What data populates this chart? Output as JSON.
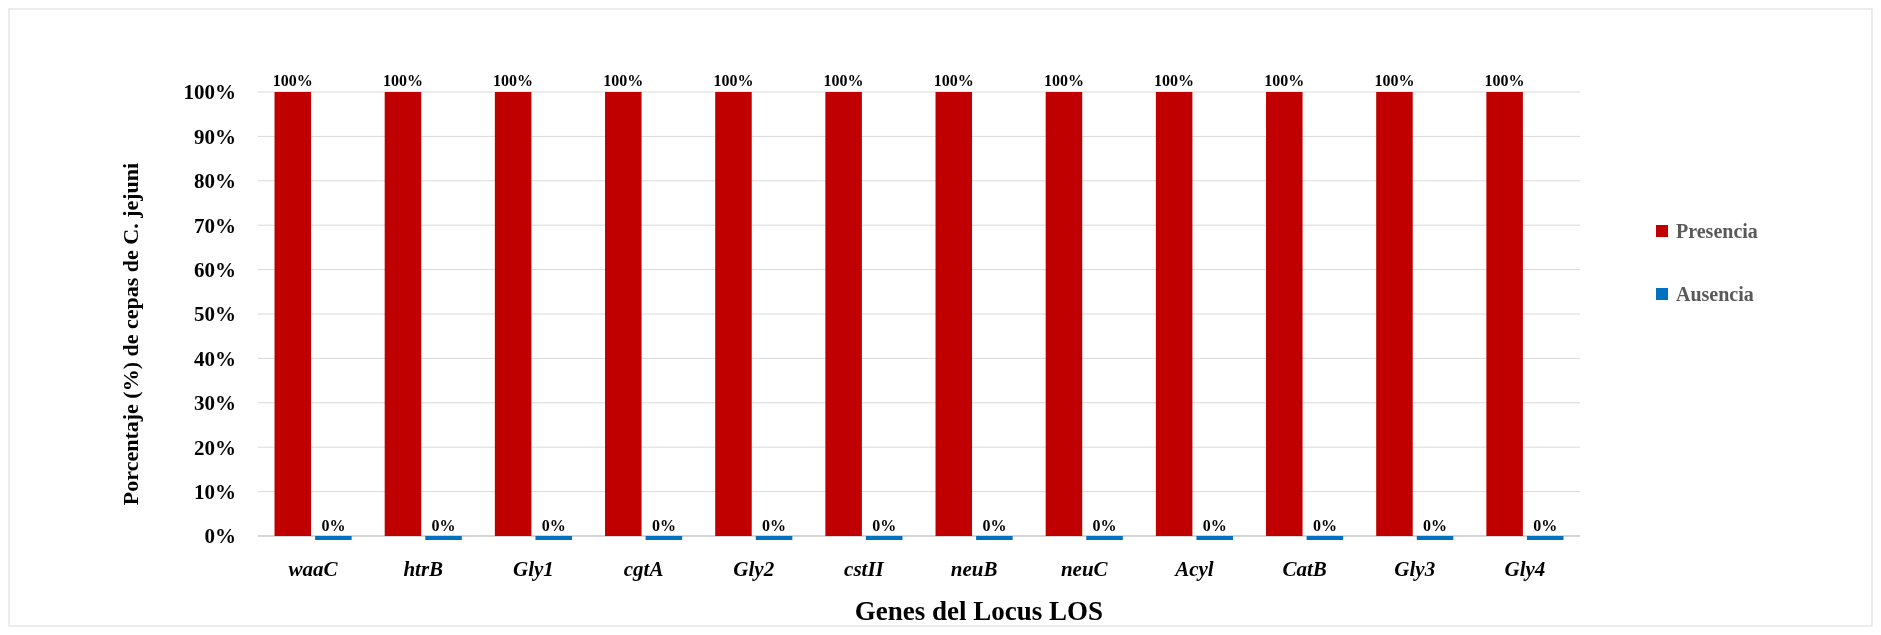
{
  "chart_data": {
    "type": "bar",
    "xlabel": "Genes del Locus  LOS",
    "ylabel": "Porcentaje (%) de cepas de C. jejuni",
    "categories": [
      "waaC",
      "htrB",
      "Gly1",
      "cgtA",
      "Gly2",
      "cstII",
      "neuB",
      "neuC",
      "Acyl",
      "CatB",
      "Gly3",
      "Gly4"
    ],
    "series": [
      {
        "name": "Presencia",
        "color": "#c00000",
        "values": [
          100,
          100,
          100,
          100,
          100,
          100,
          100,
          100,
          100,
          100,
          100,
          100
        ],
        "value_labels": [
          "100%",
          "100%",
          "100%",
          "100%",
          "100%",
          "100%",
          "100%",
          "100%",
          "100%",
          "100%",
          "100%",
          "100%"
        ]
      },
      {
        "name": "Ausencia",
        "color": "#0070c0",
        "values": [
          0,
          0,
          0,
          0,
          0,
          0,
          0,
          0,
          0,
          0,
          0,
          0
        ],
        "value_labels": [
          "0%",
          "0%",
          "0%",
          "0%",
          "0%",
          "0%",
          "0%",
          "0%",
          "0%",
          "0%",
          "0%",
          "0%"
        ]
      }
    ],
    "ylim": [
      0,
      100
    ],
    "yticks": [
      {
        "value": 0,
        "label": "0%"
      },
      {
        "value": 10,
        "label": "10%"
      },
      {
        "value": 20,
        "label": "20%"
      },
      {
        "value": 30,
        "label": "30%"
      },
      {
        "value": 40,
        "label": "40%"
      },
      {
        "value": 50,
        "label": "50%"
      },
      {
        "value": 60,
        "label": "60%"
      },
      {
        "value": 70,
        "label": "70%"
      },
      {
        "value": 80,
        "label": "80%"
      },
      {
        "value": 90,
        "label": "90%"
      },
      {
        "value": 100,
        "label": "100%"
      }
    ],
    "grid": "y",
    "legend": "right"
  }
}
